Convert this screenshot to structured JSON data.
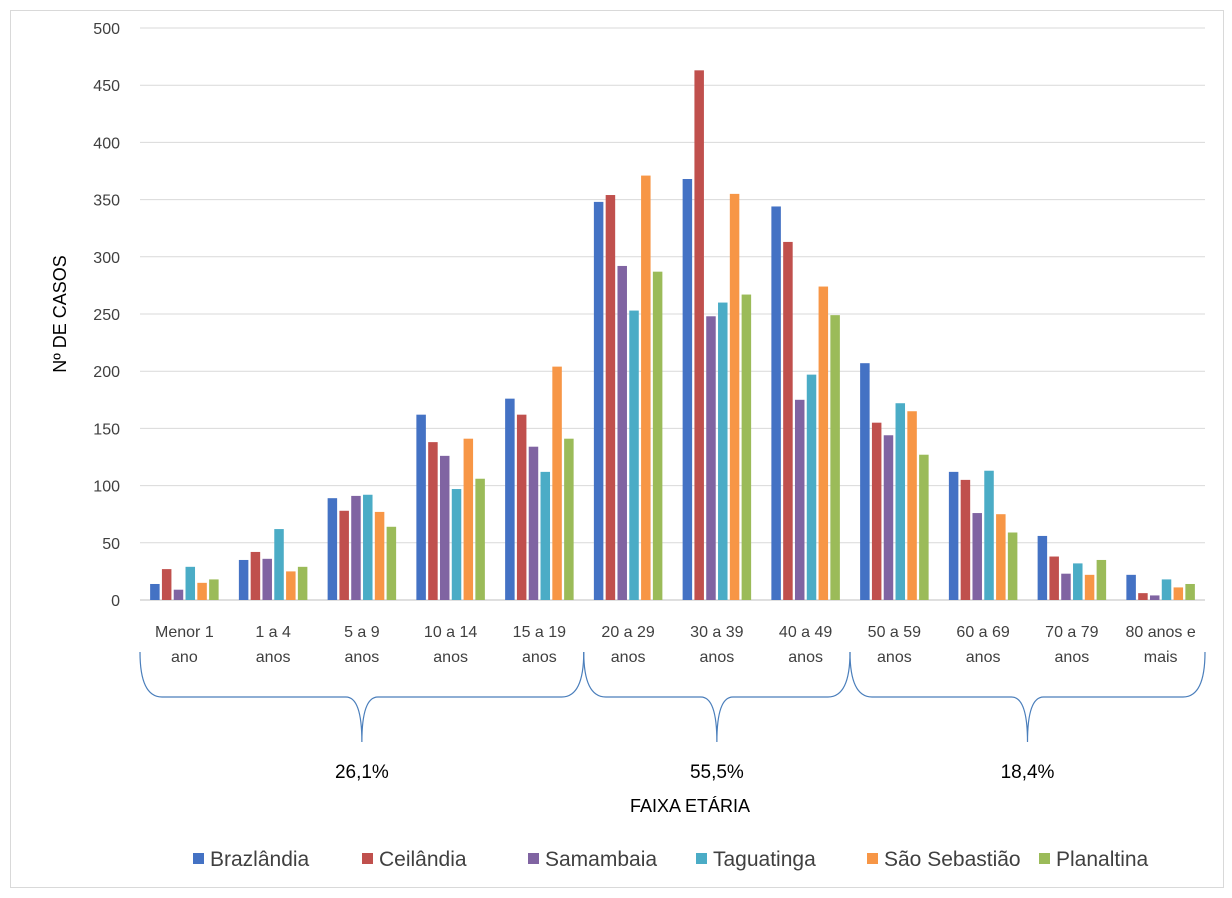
{
  "chart_data": {
    "type": "bar",
    "title": "",
    "xlabel": "FAIXA ETÁRIA",
    "ylabel": "Nº DE CASOS",
    "ylim": [
      0,
      500
    ],
    "yticks": [
      0,
      50,
      100,
      150,
      200,
      250,
      300,
      350,
      400,
      450,
      500
    ],
    "grid": true,
    "legend_position": "bottom",
    "categories": [
      [
        "Menor 1",
        "ano"
      ],
      [
        "1 a 4",
        "anos"
      ],
      [
        "5 a 9",
        "anos"
      ],
      [
        "10 a 14",
        "anos"
      ],
      [
        "15 a 19",
        "anos"
      ],
      [
        "20 a 29",
        "anos"
      ],
      [
        "30 a 39",
        "anos"
      ],
      [
        "40 a 49",
        "anos"
      ],
      [
        "50 a 59",
        "anos"
      ],
      [
        "60 a 69",
        "anos"
      ],
      [
        "70 a 79",
        "anos"
      ],
      [
        "80 anos e",
        "mais"
      ]
    ],
    "series": [
      {
        "name": "Brazlândia",
        "color": "#4472c4",
        "values": [
          14,
          35,
          89,
          162,
          176,
          348,
          368,
          344,
          207,
          112,
          56,
          22
        ]
      },
      {
        "name": "Ceilândia",
        "color": "#c0504d",
        "values": [
          27,
          42,
          78,
          138,
          162,
          354,
          463,
          313,
          155,
          105,
          38,
          6
        ]
      },
      {
        "name": "Samambaia",
        "color": "#8064a2",
        "values": [
          9,
          36,
          91,
          126,
          134,
          292,
          248,
          175,
          144,
          76,
          23,
          4
        ]
      },
      {
        "name": "Taguatinga",
        "color": "#4bacc6",
        "values": [
          29,
          62,
          92,
          97,
          112,
          253,
          260,
          197,
          172,
          113,
          32,
          18
        ]
      },
      {
        "name": "São Sebastião",
        "color": "#f79646",
        "values": [
          15,
          25,
          77,
          141,
          204,
          371,
          355,
          274,
          165,
          75,
          22,
          11
        ]
      },
      {
        "name": "Planaltina",
        "color": "#9bbb59",
        "values": [
          18,
          29,
          64,
          106,
          141,
          287,
          267,
          249,
          127,
          59,
          35,
          14
        ]
      }
    ],
    "groups": [
      {
        "label": "26,1%",
        "from": 0,
        "to": 4
      },
      {
        "label": "55,5%",
        "from": 5,
        "to": 7
      },
      {
        "label": "18,4%",
        "from": 8,
        "to": 11
      }
    ]
  }
}
